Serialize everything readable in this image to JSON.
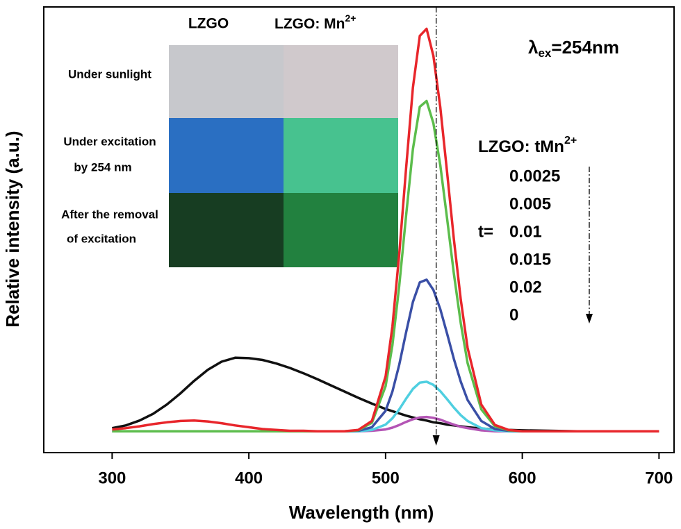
{
  "chart_data": {
    "type": "line",
    "x_label": "Wavelength (nm)",
    "y_label": "Relative intensity (a.u.)",
    "xlim": [
      250,
      711
    ],
    "ylim": [
      0,
      100
    ],
    "xticks": [
      300,
      400,
      500,
      600,
      700
    ],
    "x": [
      300,
      310,
      320,
      330,
      340,
      350,
      360,
      370,
      380,
      390,
      400,
      410,
      420,
      430,
      440,
      450,
      460,
      470,
      480,
      490,
      500,
      505,
      510,
      515,
      520,
      525,
      530,
      535,
      540,
      545,
      550,
      555,
      560,
      570,
      580,
      590,
      600,
      620,
      640,
      660,
      680,
      700
    ],
    "series": [
      {
        "name": "0.0025",
        "color": "#e8262b",
        "values": [
          5.2,
          5.5,
          5.9,
          6.4,
          6.8,
          7.1,
          7.2,
          7.0,
          6.6,
          6.1,
          5.7,
          5.3,
          5.1,
          4.9,
          4.9,
          4.8,
          4.8,
          4.8,
          5.1,
          7.1,
          17.1,
          28.3,
          44.5,
          63.8,
          81.9,
          93.5,
          95.1,
          89.0,
          77.5,
          62.9,
          47.8,
          34.3,
          23.5,
          10.8,
          6.2,
          5.1,
          4.8,
          4.8,
          4.8,
          4.8,
          4.8,
          4.8
        ]
      },
      {
        "name": "0.005",
        "color": "#5cbd4c",
        "values": [
          4.8,
          4.8,
          4.8,
          4.8,
          4.8,
          4.8,
          4.8,
          4.8,
          4.8,
          4.8,
          4.8,
          4.8,
          4.8,
          4.8,
          4.8,
          4.8,
          4.8,
          4.8,
          5.0,
          6.7,
          14.9,
          24.1,
          37.4,
          53.2,
          68.1,
          77.6,
          78.9,
          73.9,
          64.5,
          52.5,
          40.1,
          29.0,
          20.1,
          9.7,
          5.9,
          5.0,
          4.8,
          4.8,
          4.8,
          4.8,
          4.8,
          4.8
        ]
      },
      {
        "name": "0.01",
        "color": "#3a4fa6",
        "values": [
          4.8,
          4.8,
          4.8,
          4.8,
          4.8,
          4.8,
          4.8,
          4.8,
          4.8,
          4.8,
          4.8,
          4.8,
          4.8,
          4.8,
          4.8,
          4.8,
          4.8,
          4.8,
          4.9,
          5.7,
          9.4,
          13.7,
          19.7,
          27.0,
          33.8,
          38.2,
          38.8,
          36.5,
          32.2,
          26.7,
          21.0,
          15.9,
          11.8,
          7.1,
          5.3,
          4.9,
          4.8,
          4.8,
          4.8,
          4.8,
          4.8,
          4.8
        ]
      },
      {
        "name": "0.015",
        "color": "#4fcfe0",
        "values": [
          4.8,
          4.8,
          4.8,
          4.8,
          4.8,
          4.8,
          4.8,
          4.8,
          4.8,
          4.8,
          4.8,
          4.8,
          4.8,
          4.8,
          4.8,
          4.8,
          4.8,
          4.8,
          4.8,
          5.1,
          6.3,
          7.7,
          9.7,
          12.1,
          14.3,
          15.7,
          15.9,
          15.2,
          13.8,
          12.0,
          10.1,
          8.4,
          7.1,
          5.5,
          5.0,
          4.8,
          4.8,
          4.8,
          4.8,
          4.8,
          4.8,
          4.8
        ]
      },
      {
        "name": "0.02",
        "color": "#b455b5",
        "values": [
          4.8,
          4.8,
          4.8,
          4.8,
          4.8,
          4.8,
          4.8,
          4.8,
          4.8,
          4.8,
          4.8,
          4.8,
          4.8,
          4.8,
          4.8,
          4.8,
          4.8,
          4.8,
          4.8,
          4.9,
          5.2,
          5.6,
          6.2,
          6.9,
          7.5,
          7.9,
          8.0,
          7.8,
          7.4,
          6.8,
          6.3,
          5.8,
          5.5,
          5.0,
          4.8,
          4.8,
          4.8,
          4.8,
          4.8,
          4.8,
          4.8,
          4.8
        ]
      },
      {
        "name": "0",
        "color": "#111111",
        "values": [
          5.5,
          6.1,
          7.2,
          8.7,
          10.8,
          13.3,
          16.1,
          18.6,
          20.4,
          21.3,
          21.2,
          20.8,
          20.0,
          19.0,
          17.8,
          16.5,
          15.1,
          13.7,
          12.3,
          11.0,
          9.8,
          9.3,
          8.8,
          8.3,
          7.9,
          7.5,
          7.2,
          6.8,
          6.6,
          6.3,
          6.1,
          5.9,
          5.7,
          5.4,
          5.2,
          5.1,
          5.0,
          4.9,
          4.8,
          4.8,
          4.8,
          4.8
        ]
      }
    ],
    "marker_x": 537,
    "legend_title": {
      "text": "LZGO: tMn",
      "superscript": "2+"
    },
    "legend_variable_label": "t=",
    "annotation": {
      "symbol": "λ",
      "subscript": "ex",
      "text": "=254nm"
    },
    "inset": {
      "columns": [
        {
          "text": "LZGO"
        },
        {
          "text": "LZGO: Mn",
          "superscript": "2+"
        }
      ],
      "rows": [
        [
          "Under sunlight"
        ],
        [
          "Under excitation",
          "by 254 nm"
        ],
        [
          "After the removal",
          "of excitation"
        ]
      ]
    }
  }
}
